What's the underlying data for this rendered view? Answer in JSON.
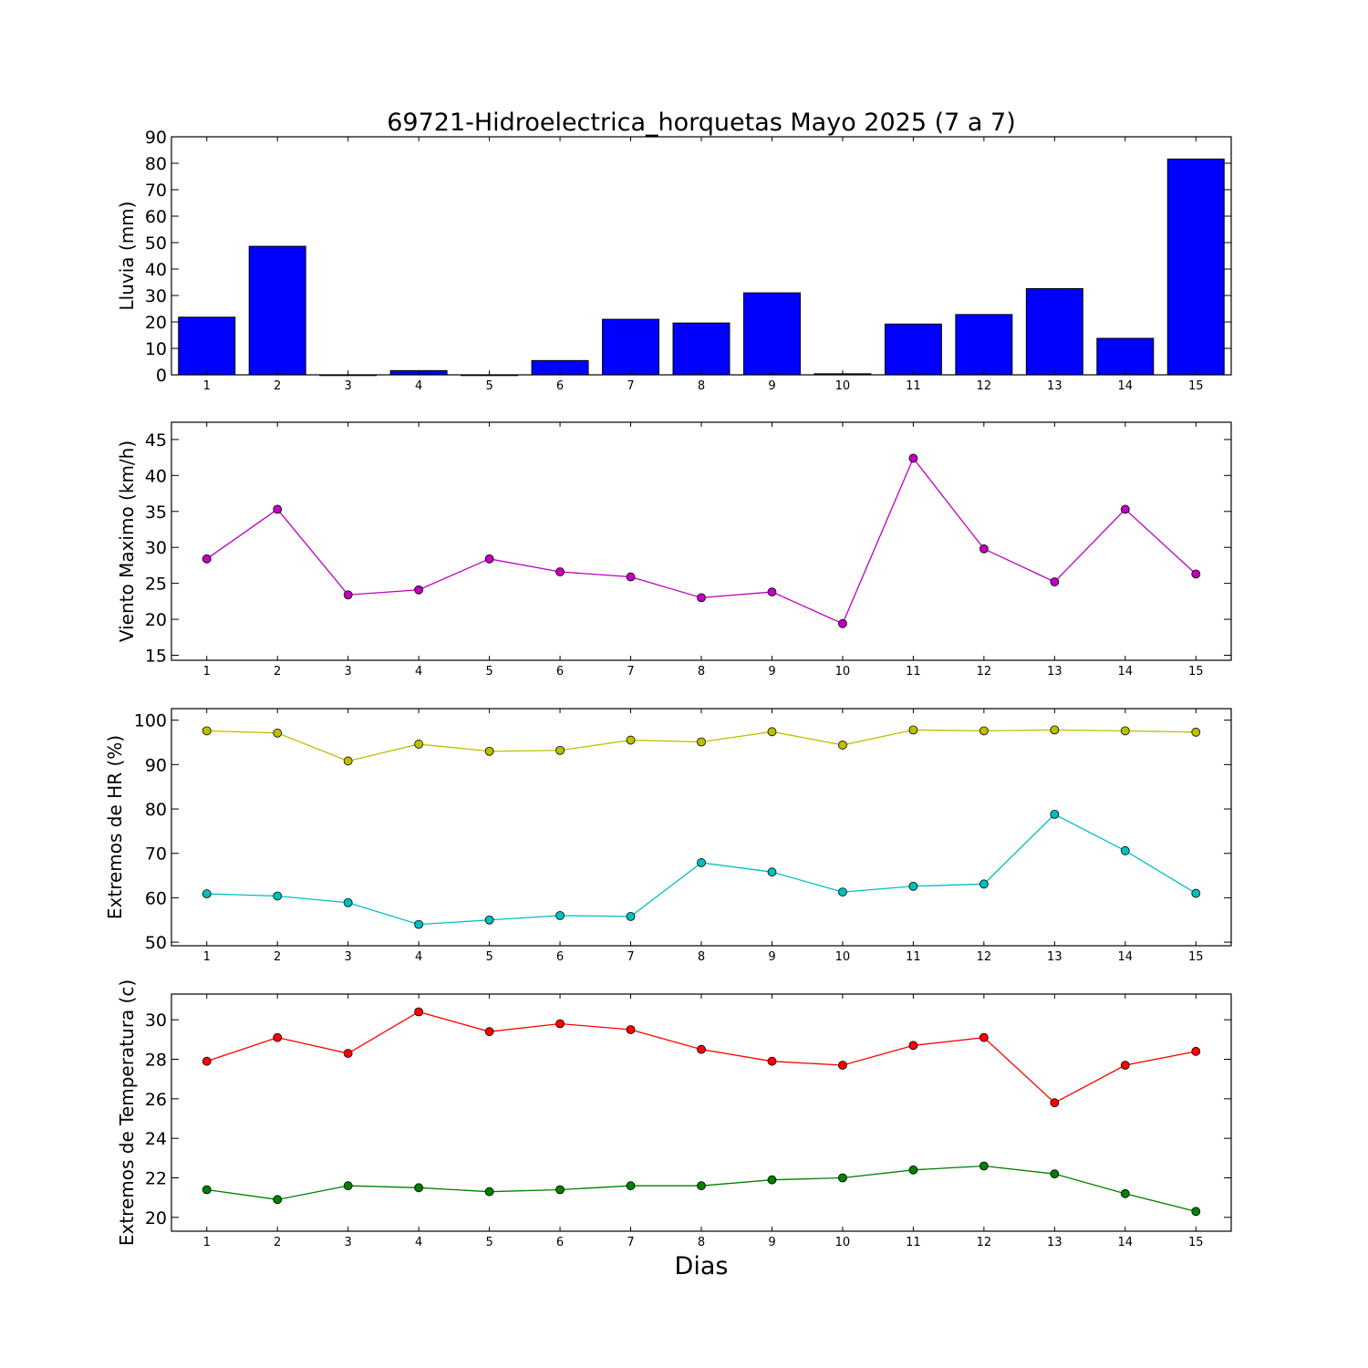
{
  "title": "69721-Hidroelectrica_horquetas Mayo 2025  (7 a 7)",
  "xlabel": "Dias",
  "chart_data": [
    {
      "type": "bar",
      "ylabel": "Lluvia (mm)",
      "categories": [
        "1",
        "2",
        "3",
        "4",
        "5",
        "6",
        "7",
        "8",
        "9",
        "10",
        "11",
        "12",
        "13",
        "14",
        "15"
      ],
      "xlim": [
        0.5,
        15.5
      ],
      "ylim": [
        0,
        90
      ],
      "yticks": [
        0,
        10,
        20,
        30,
        40,
        50,
        60,
        70,
        80,
        90
      ],
      "series": [
        {
          "color": "#0000ff",
          "values": [
            21.8,
            48.6,
            0.0,
            1.6,
            0.0,
            5.4,
            21.0,
            19.6,
            31.0,
            0.4,
            19.2,
            22.8,
            32.6,
            13.8,
            81.6
          ]
        }
      ]
    },
    {
      "type": "line",
      "ylabel": "Viento Maximo (km/h)",
      "categories": [
        "1",
        "2",
        "3",
        "4",
        "5",
        "6",
        "7",
        "8",
        "9",
        "10",
        "11",
        "12",
        "13",
        "14",
        "15"
      ],
      "xlim": [
        0.5,
        15.5
      ],
      "ylim": [
        14.3,
        47.4
      ],
      "yticks": [
        15,
        20,
        25,
        30,
        35,
        40,
        45
      ],
      "series": [
        {
          "color": "#bf00bf",
          "values": [
            28.4,
            35.3,
            23.4,
            24.1,
            28.4,
            26.6,
            25.9,
            23.0,
            23.8,
            19.4,
            42.4,
            29.8,
            25.2,
            35.3,
            26.3
          ]
        }
      ]
    },
    {
      "type": "line",
      "ylabel": "Extremos de HR (%)",
      "categories": [
        "1",
        "2",
        "3",
        "4",
        "5",
        "6",
        "7",
        "8",
        "9",
        "10",
        "11",
        "12",
        "13",
        "14",
        "15"
      ],
      "xlim": [
        0.5,
        15.5
      ],
      "ylim": [
        49.2,
        102.6
      ],
      "yticks": [
        50,
        60,
        70,
        80,
        90,
        100
      ],
      "series": [
        {
          "color": "#bfbf00",
          "values": [
            97.6,
            97.1,
            90.8,
            94.6,
            93.0,
            93.2,
            95.5,
            95.1,
            97.4,
            94.4,
            97.8,
            97.6,
            97.8,
            97.6,
            97.3
          ]
        },
        {
          "color": "#00bfbf",
          "values": [
            60.9,
            60.4,
            58.9,
            54.0,
            55.0,
            56.0,
            55.8,
            67.9,
            65.8,
            61.3,
            62.6,
            63.1,
            78.8,
            70.6,
            61.0
          ]
        }
      ]
    },
    {
      "type": "line",
      "ylabel": "Extremos de Temperatura (c)",
      "categories": [
        "1",
        "2",
        "3",
        "4",
        "5",
        "6",
        "7",
        "8",
        "9",
        "10",
        "11",
        "12",
        "13",
        "14",
        "15"
      ],
      "xlim": [
        0.5,
        15.5
      ],
      "ylim": [
        19.3,
        31.3
      ],
      "yticks": [
        20,
        22,
        24,
        26,
        28,
        30
      ],
      "series": [
        {
          "color": "#ff0000",
          "values": [
            27.9,
            29.1,
            28.3,
            30.4,
            29.4,
            29.8,
            29.5,
            28.5,
            27.9,
            27.7,
            28.7,
            29.1,
            25.8,
            27.7,
            28.4
          ]
        },
        {
          "color": "#007f00",
          "values": [
            21.4,
            20.9,
            21.6,
            21.5,
            21.3,
            21.4,
            21.6,
            21.6,
            21.9,
            22.0,
            22.4,
            22.6,
            22.2,
            21.2,
            20.3
          ]
        }
      ]
    }
  ]
}
